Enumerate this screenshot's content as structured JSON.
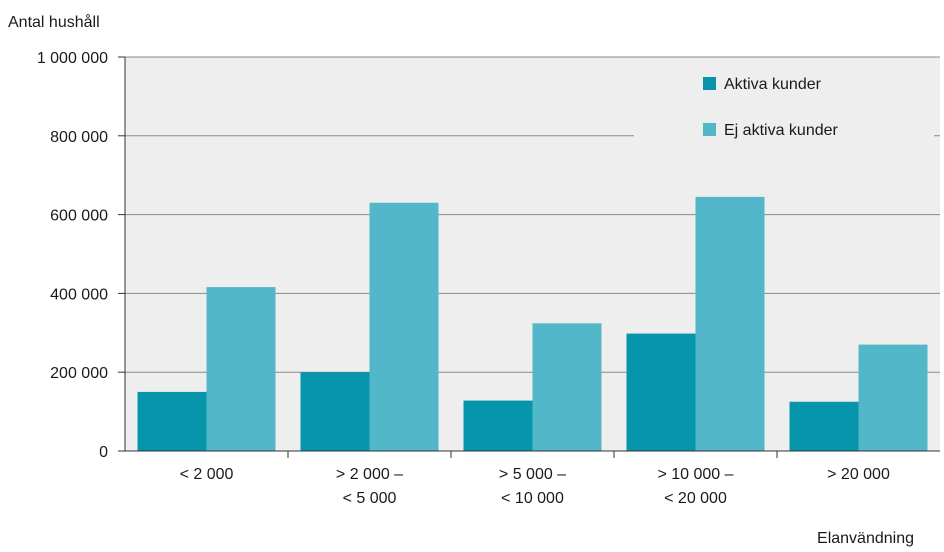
{
  "chart_data": {
    "type": "bar",
    "ylabel": "Antal hushåll",
    "xlabel": "Elanvändning",
    "ylim": [
      0,
      1000000
    ],
    "yticks": [
      0,
      200000,
      400000,
      600000,
      800000,
      1000000
    ],
    "ytick_labels": [
      "0",
      "200 000",
      "400 000",
      "600 000",
      "800 000",
      "1 000 000"
    ],
    "categories": [
      [
        "< 2 000"
      ],
      [
        "> 2 000 –",
        "< 5 000"
      ],
      [
        "> 5 000 –",
        "< 10 000"
      ],
      [
        "> 10 000 –",
        "< 20 000"
      ],
      [
        "> 20 000"
      ]
    ],
    "series": [
      {
        "name": "Aktiva kunder",
        "color": "#0795ac",
        "values": [
          150000,
          200000,
          128000,
          298000,
          125000
        ]
      },
      {
        "name": "Ej aktiva kunder",
        "color": "#52b7c8",
        "values": [
          416000,
          630000,
          324000,
          645000,
          270000
        ]
      }
    ],
    "grid": true,
    "legend": "top-right",
    "background": "#eeeeee"
  }
}
